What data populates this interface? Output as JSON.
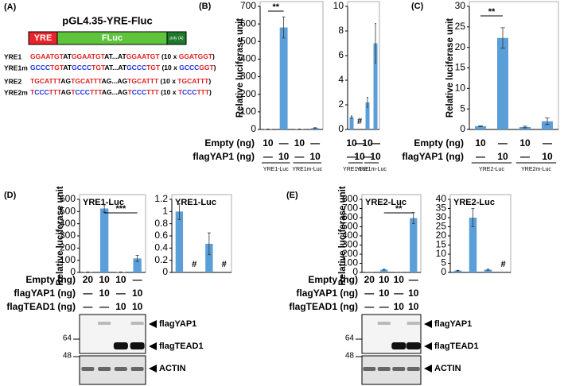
{
  "panel_a": {
    "panel": "(A)",
    "title": "pGL4.35-YRE-Fluc",
    "segments": [
      "YRE",
      "FLuc",
      "poly (A)"
    ],
    "sequences": [
      {
        "name": "YRE1",
        "parts": [
          {
            "text": "GGAATGT",
            "color": "#e02020"
          },
          {
            "text": "AT",
            "color": "#000000"
          },
          {
            "text": "GGAATGT",
            "color": "#e02020"
          },
          {
            "text": "AT...AT",
            "color": "#000000"
          },
          {
            "text": "GGAATGT",
            "color": "#e02020"
          },
          {
            "text": " (10 x ",
            "color": "#000000"
          },
          {
            "text": "GGATGGT",
            "color": "#e02020"
          },
          {
            "text": ")",
            "color": "#000000"
          }
        ]
      },
      {
        "name": "YRE1m",
        "parts": [
          {
            "text": "GCCC",
            "color": "#2030e0"
          },
          {
            "text": "TGT",
            "color": "#e02020"
          },
          {
            "text": "AT",
            "color": "#000000"
          },
          {
            "text": "GCCC",
            "color": "#2030e0"
          },
          {
            "text": "TGT",
            "color": "#e02020"
          },
          {
            "text": "AT...AT",
            "color": "#000000"
          },
          {
            "text": "GCCC",
            "color": "#2030e0"
          },
          {
            "text": "TGT",
            "color": "#e02020"
          },
          {
            "text": " (10 x ",
            "color": "#000000"
          },
          {
            "text": "GCCC",
            "color": "#2030e0"
          },
          {
            "text": "GGT",
            "color": "#e02020"
          },
          {
            "text": ")",
            "color": "#000000"
          }
        ]
      },
      {
        "name": "YRE2",
        "parts": [
          {
            "text": "TGCATTT",
            "color": "#e02020"
          },
          {
            "text": "AG",
            "color": "#000000"
          },
          {
            "text": "TGCATTT",
            "color": "#e02020"
          },
          {
            "text": "AG...AG",
            "color": "#000000"
          },
          {
            "text": "TGCATTT",
            "color": "#e02020"
          },
          {
            "text": " (10 x ",
            "color": "#000000"
          },
          {
            "text": "TGCATTT",
            "color": "#e02020"
          },
          {
            "text": ")",
            "color": "#000000"
          }
        ]
      },
      {
        "name": "YRE2m",
        "parts": [
          {
            "text": "T",
            "color": "#e02020"
          },
          {
            "text": "CCC",
            "color": "#2030e0"
          },
          {
            "text": "TTT",
            "color": "#e02020"
          },
          {
            "text": "AG",
            "color": "#000000"
          },
          {
            "text": "T",
            "color": "#e02020"
          },
          {
            "text": "CCC",
            "color": "#2030e0"
          },
          {
            "text": "TTT",
            "color": "#e02020"
          },
          {
            "text": "AG...AG",
            "color": "#000000"
          },
          {
            "text": "T",
            "color": "#e02020"
          },
          {
            "text": "CCC",
            "color": "#2030e0"
          },
          {
            "text": "TTT",
            "color": "#e02020"
          },
          {
            "text": " (10 x ",
            "color": "#000000"
          },
          {
            "text": "T",
            "color": "#e02020"
          },
          {
            "text": "CCC",
            "color": "#2030e0"
          },
          {
            "text": "TTT",
            "color": "#e02020"
          },
          {
            "text": ")",
            "color": "#000000"
          }
        ]
      }
    ]
  },
  "chart_data": [
    {
      "type": "bar",
      "panel": "(B)",
      "ylabel": "Relative luciferase unit",
      "color": "#5b9fd8",
      "values": [
        2,
        580,
        2,
        8
      ],
      "errors": [
        0.5,
        60,
        0.5,
        2
      ],
      "ylim": [
        0,
        700
      ],
      "yticks": [
        0,
        100,
        200,
        300,
        400,
        500,
        600,
        700
      ],
      "annotations": [
        {
          "text": "**"
        }
      ],
      "conditions": [
        {
          "label": "Empty (ng)",
          "values": [
            "10",
            "—",
            "10",
            "—"
          ]
        },
        {
          "label": "flagYAP1 (ng)",
          "values": [
            "—",
            "10",
            "—",
            "10"
          ]
        }
      ],
      "groups": [
        "YRE1-Luc",
        "YRE1m-Luc"
      ]
    },
    {
      "type": "bar",
      "color": "#5b9fd8",
      "values": [
        1.0,
        null,
        2.2,
        7.0
      ],
      "value_labels": [
        null,
        "#",
        null,
        null
      ],
      "errors": [
        0.1,
        null,
        0.4,
        1.6
      ],
      "ylim": [
        0,
        10
      ],
      "yticks": [
        0,
        2,
        4,
        6,
        8,
        10
      ],
      "conditions": [
        {
          "values": [
            "10",
            "—",
            "10",
            "—"
          ]
        },
        {
          "values": [
            "—",
            "10",
            "—",
            "10"
          ]
        }
      ],
      "groups": [
        "YRE1-Luc",
        "YRE1m-Luc"
      ]
    },
    {
      "type": "bar",
      "panel": "(C)",
      "ylabel": "Relative luciferase unit",
      "color": "#5b9fd8",
      "values": [
        0.8,
        22.3,
        0.6,
        2.0
      ],
      "errors": [
        0.1,
        2.5,
        0.2,
        0.8
      ],
      "ylim": [
        0,
        30
      ],
      "yticks": [
        0,
        5,
        10,
        15,
        20,
        25,
        30
      ],
      "annotations": [
        {
          "text": "**"
        }
      ],
      "conditions": [
        {
          "label": "Empty (ng)",
          "values": [
            "10",
            "—",
            "10",
            "—"
          ]
        },
        {
          "label": "flagYAP1 (ng)",
          "values": [
            "—",
            "10",
            "—",
            "10"
          ]
        }
      ],
      "groups": [
        "YRE2-Luc",
        "YRE2m-Luc"
      ]
    },
    {
      "type": "bar",
      "panel": "(D)",
      "ylabel": "Relative luciferase unit",
      "label": "YRE1-Luc",
      "color": "#5b9fd8",
      "values": [
        3,
        525,
        3,
        115
      ],
      "errors": [
        1,
        30,
        1,
        25
      ],
      "ylim": [
        0,
        600
      ],
      "yticks": [
        0,
        100,
        200,
        300,
        400,
        500,
        600
      ],
      "annotations": [
        {
          "text": "***"
        }
      ],
      "conditions": [
        {
          "label": "Empty (ng)",
          "values": [
            "20",
            "10",
            "10",
            "—"
          ]
        },
        {
          "label": "flagYAP1 (ng)",
          "values": [
            "—",
            "10",
            "—",
            "10"
          ]
        },
        {
          "label": "flagTEAD1 (ng)",
          "values": [
            "—",
            "—",
            "10",
            "10"
          ]
        }
      ]
    },
    {
      "type": "bar",
      "label": "YRE1-Luc",
      "color": "#5b9fd8",
      "values": [
        1.0,
        null,
        0.47,
        null
      ],
      "value_labels": [
        null,
        "#",
        null,
        "#"
      ],
      "errors": [
        0.13,
        null,
        0.18,
        null
      ],
      "ylim": [
        0,
        1.2
      ],
      "yticks": [
        0,
        0.2,
        0.4,
        0.6,
        0.8,
        1,
        1.2
      ]
    },
    {
      "type": "bar",
      "panel": "(E)",
      "ylabel": "Relative luciferase unit",
      "label": "YRE2-Luc",
      "color": "#5b9fd8",
      "values": [
        2,
        30,
        2,
        595
      ],
      "errors": [
        0.5,
        5,
        0.5,
        60
      ],
      "ylim": [
        0,
        800
      ],
      "yticks": [
        0,
        100,
        200,
        300,
        400,
        500,
        600,
        700,
        800
      ],
      "annotations": [
        {
          "text": "**"
        }
      ],
      "conditions": [
        {
          "label": "Empty (ng)",
          "values": [
            "20",
            "10",
            "10",
            "—"
          ]
        },
        {
          "label": "flagYAP1 (ng)",
          "values": [
            "—",
            "10",
            "—",
            "10"
          ]
        },
        {
          "label": "flagTEAD1 (ng)",
          "values": [
            "—",
            "—",
            "10",
            "10"
          ]
        }
      ]
    },
    {
      "type": "bar",
      "label": "YRE2-Luc",
      "color": "#5b9fd8",
      "values": [
        1,
        30,
        1.5,
        null
      ],
      "value_labels": [
        null,
        null,
        null,
        "#"
      ],
      "errors": [
        0.2,
        5,
        0.3,
        null
      ],
      "ylim": [
        0,
        40
      ],
      "yticks": [
        0,
        5,
        10,
        15,
        20,
        25,
        30,
        35,
        40
      ]
    }
  ],
  "blots": [
    {
      "markers": [
        "64",
        "48"
      ],
      "bands": [
        "flagYAP1",
        "flagTEAD1",
        "ACTIN"
      ]
    },
    {
      "markers": [
        "64",
        "48"
      ],
      "bands": [
        "flagYAP1",
        "flagTEAD1",
        "ACTIN"
      ]
    }
  ]
}
